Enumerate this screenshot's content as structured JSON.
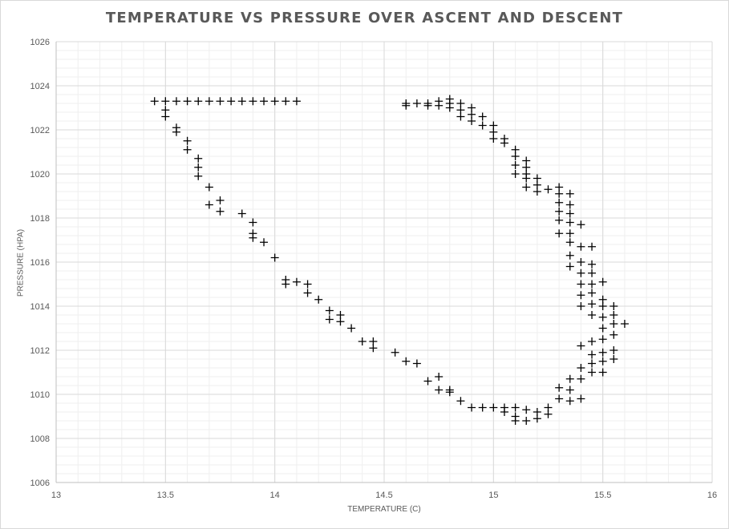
{
  "chart_data": {
    "type": "scatter",
    "title": "TEMPERATURE VS PRESSURE OVER ASCENT AND DESCENT",
    "xlabel": "TEMPERATURE (C)",
    "ylabel": "PRESSURE (HPA)",
    "xlim": [
      13,
      16
    ],
    "ylim": [
      1006,
      1026
    ],
    "x_ticks": [
      "13",
      "13.5",
      "14",
      "14.5",
      "15",
      "15.5",
      "16"
    ],
    "y_ticks": [
      "1006",
      "1008",
      "1010",
      "1012",
      "1014",
      "1016",
      "1018",
      "1020",
      "1022",
      "1024",
      "1026"
    ],
    "grid": true,
    "marker": "plus",
    "marker_color": "#000000",
    "series": [
      {
        "points": [
          [
            13.45,
            1023.3
          ],
          [
            13.5,
            1023.3
          ],
          [
            13.55,
            1023.3
          ],
          [
            13.6,
            1023.3
          ],
          [
            13.65,
            1023.3
          ],
          [
            13.7,
            1023.3
          ],
          [
            13.75,
            1023.3
          ],
          [
            13.8,
            1023.3
          ],
          [
            13.85,
            1023.3
          ],
          [
            13.9,
            1023.3
          ],
          [
            13.95,
            1023.3
          ],
          [
            14.0,
            1023.3
          ],
          [
            14.05,
            1023.3
          ],
          [
            14.1,
            1023.3
          ],
          [
            13.5,
            1022.9
          ],
          [
            13.5,
            1022.6
          ],
          [
            13.55,
            1022.1
          ],
          [
            13.55,
            1021.9
          ],
          [
            13.6,
            1021.5
          ],
          [
            13.6,
            1021.1
          ],
          [
            13.65,
            1020.7
          ],
          [
            13.65,
            1020.3
          ],
          [
            13.65,
            1019.9
          ],
          [
            13.7,
            1019.4
          ],
          [
            13.75,
            1018.8
          ],
          [
            13.7,
            1018.6
          ],
          [
            13.75,
            1018.3
          ],
          [
            13.85,
            1018.2
          ],
          [
            13.9,
            1017.8
          ],
          [
            13.9,
            1017.3
          ],
          [
            13.9,
            1017.1
          ],
          [
            13.95,
            1016.9
          ],
          [
            14.0,
            1016.2
          ],
          [
            14.05,
            1015.2
          ],
          [
            14.05,
            1015.0
          ],
          [
            14.1,
            1015.1
          ],
          [
            14.15,
            1015.0
          ],
          [
            14.15,
            1014.6
          ],
          [
            14.2,
            1014.3
          ],
          [
            14.25,
            1013.8
          ],
          [
            14.25,
            1013.4
          ],
          [
            14.3,
            1013.6
          ],
          [
            14.3,
            1013.3
          ],
          [
            14.35,
            1013.0
          ],
          [
            14.4,
            1012.4
          ],
          [
            14.45,
            1012.4
          ],
          [
            14.45,
            1012.1
          ],
          [
            14.55,
            1011.9
          ],
          [
            14.6,
            1011.5
          ],
          [
            14.65,
            1011.4
          ],
          [
            14.7,
            1010.6
          ],
          [
            14.75,
            1010.8
          ],
          [
            14.75,
            1010.2
          ],
          [
            14.8,
            1010.2
          ],
          [
            14.8,
            1010.1
          ],
          [
            14.85,
            1009.7
          ],
          [
            14.9,
            1009.4
          ],
          [
            14.95,
            1009.4
          ],
          [
            15.0,
            1009.4
          ],
          [
            15.05,
            1009.4
          ],
          [
            15.05,
            1009.2
          ],
          [
            15.1,
            1009.4
          ],
          [
            15.1,
            1009.0
          ],
          [
            15.1,
            1008.8
          ],
          [
            15.15,
            1009.3
          ],
          [
            15.15,
            1008.8
          ],
          [
            15.2,
            1009.2
          ],
          [
            15.2,
            1008.9
          ],
          [
            15.25,
            1009.4
          ],
          [
            15.25,
            1009.1
          ],
          [
            15.3,
            1009.8
          ],
          [
            15.3,
            1010.3
          ],
          [
            15.35,
            1009.7
          ],
          [
            15.35,
            1010.2
          ],
          [
            15.35,
            1010.7
          ],
          [
            15.4,
            1010.7
          ],
          [
            15.4,
            1011.2
          ],
          [
            15.4,
            1009.8
          ],
          [
            15.45,
            1011.0
          ],
          [
            15.45,
            1011.4
          ],
          [
            15.45,
            1011.8
          ],
          [
            15.45,
            1012.4
          ],
          [
            15.4,
            1012.2
          ],
          [
            15.5,
            1011.0
          ],
          [
            15.5,
            1011.5
          ],
          [
            15.5,
            1011.9
          ],
          [
            15.5,
            1012.5
          ],
          [
            15.5,
            1013.0
          ],
          [
            15.55,
            1011.6
          ],
          [
            15.55,
            1012.0
          ],
          [
            15.55,
            1012.7
          ],
          [
            15.55,
            1013.2
          ],
          [
            15.55,
            1013.6
          ],
          [
            15.55,
            1014.0
          ],
          [
            15.6,
            1013.2
          ],
          [
            15.5,
            1013.5
          ],
          [
            15.5,
            1014.0
          ],
          [
            15.5,
            1014.3
          ],
          [
            15.5,
            1015.1
          ],
          [
            15.45,
            1013.6
          ],
          [
            15.45,
            1014.1
          ],
          [
            15.45,
            1014.6
          ],
          [
            15.45,
            1015.0
          ],
          [
            15.45,
            1015.5
          ],
          [
            15.45,
            1015.9
          ],
          [
            15.45,
            1016.7
          ],
          [
            15.4,
            1014.0
          ],
          [
            15.4,
            1014.5
          ],
          [
            15.4,
            1015.0
          ],
          [
            15.4,
            1015.5
          ],
          [
            15.4,
            1016.0
          ],
          [
            15.4,
            1016.7
          ],
          [
            15.4,
            1017.7
          ],
          [
            15.35,
            1015.8
          ],
          [
            15.35,
            1016.3
          ],
          [
            15.35,
            1016.9
          ],
          [
            15.35,
            1017.3
          ],
          [
            15.35,
            1017.8
          ],
          [
            15.35,
            1018.2
          ],
          [
            15.35,
            1018.6
          ],
          [
            15.35,
            1019.1
          ],
          [
            15.3,
            1017.3
          ],
          [
            15.3,
            1017.9
          ],
          [
            15.3,
            1018.3
          ],
          [
            15.3,
            1018.7
          ],
          [
            15.3,
            1019.1
          ],
          [
            15.3,
            1019.4
          ],
          [
            15.25,
            1019.3
          ],
          [
            15.2,
            1019.2
          ],
          [
            15.2,
            1019.5
          ],
          [
            15.2,
            1019.8
          ],
          [
            15.15,
            1019.4
          ],
          [
            15.15,
            1019.8
          ],
          [
            15.15,
            1020.0
          ],
          [
            15.15,
            1020.3
          ],
          [
            15.15,
            1020.6
          ],
          [
            15.1,
            1020.0
          ],
          [
            15.1,
            1020.4
          ],
          [
            15.1,
            1020.8
          ],
          [
            15.1,
            1021.1
          ],
          [
            15.05,
            1021.4
          ],
          [
            15.05,
            1021.6
          ],
          [
            15.0,
            1021.6
          ],
          [
            15.0,
            1021.9
          ],
          [
            15.0,
            1022.2
          ],
          [
            14.95,
            1022.2
          ],
          [
            14.95,
            1022.6
          ],
          [
            14.9,
            1022.4
          ],
          [
            14.9,
            1022.7
          ],
          [
            14.9,
            1023.0
          ],
          [
            14.85,
            1022.6
          ],
          [
            14.85,
            1022.9
          ],
          [
            14.85,
            1023.2
          ],
          [
            14.8,
            1023.0
          ],
          [
            14.8,
            1023.2
          ],
          [
            14.8,
            1023.4
          ],
          [
            14.75,
            1023.1
          ],
          [
            14.75,
            1023.3
          ],
          [
            14.7,
            1023.1
          ],
          [
            14.7,
            1023.2
          ],
          [
            14.65,
            1023.2
          ],
          [
            14.6,
            1023.2
          ],
          [
            14.6,
            1023.1
          ]
        ]
      }
    ]
  }
}
